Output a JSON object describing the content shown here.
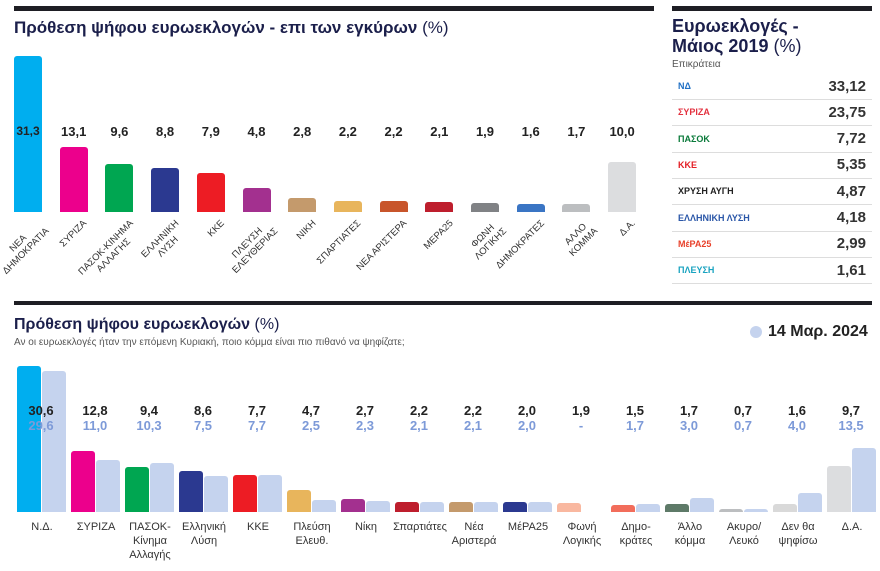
{
  "chart_data": [
    {
      "type": "bar",
      "title": "Πρόθεση ψήφου ευρωεκλογών - επι των εγκύρων",
      "title_unit": "(%)",
      "categories": [
        "ΝΕΑ\nΔΗΜΟΚΡΑΤΙΑ",
        "ΣΥΡΙΖΑ",
        "ΠΑΣΟΚ-ΚΙΝΗΜΑ\nΑΛΛΑΓΗΣ",
        "ΕΛΛΗΝΙΚΗ\nΛΥΣΗ",
        "ΚΚΕ",
        "ΠΛΕΥΣΗ\nΕΛΕΥΘΕΡΙΑΣ",
        "ΝΙΚΗ",
        "ΣΠΑΡΤΙΑΤΕΣ",
        "ΝΕΑ ΑΡΙΣΤΕΡΑ",
        "ΜΕΡΑ25",
        "ΦΩΝΗ\nΛΟΓΙΚΗΣ",
        "ΔΗΜΟΚΡΑΤΕΣ",
        "ΑΛΛΟ\nΚΟΜΜΑ",
        "Δ.Α."
      ],
      "values": [
        31.3,
        13.1,
        9.6,
        8.8,
        7.9,
        4.8,
        2.8,
        2.2,
        2.2,
        2.1,
        1.9,
        1.6,
        1.7,
        10.0
      ],
      "labels": [
        "31,3",
        "13,1",
        "9,6",
        "8,8",
        "7,9",
        "4,8",
        "2,8",
        "2,2",
        "2,2",
        "2,1",
        "1,9",
        "1,6",
        "1,7",
        "10,0"
      ],
      "colors": [
        "#00aeef",
        "#ec008c",
        "#00a651",
        "#2b3990",
        "#ed1c24",
        "#a3308f",
        "#c49a6c",
        "#e8b55c",
        "#c8552b",
        "#be1e2d",
        "#808285",
        "#3a75c4",
        "#bcbec0",
        "#dcdddf"
      ]
    },
    {
      "type": "bar",
      "title": "Πρόθεση ψήφου ευρωεκλογών",
      "title_unit": "(%)",
      "subtitle": "Αν οι ευρωεκλογές ήταν την επόμενη Κυριακή, ποιο κόμμα είναι πιο πιθανό να ψηφίζατε;",
      "legend": "top-right",
      "categories": [
        "Ν.Δ.",
        "ΣΥΡΙΖΑ",
        "ΠΑΣΟΚ-\nΚίνημα\nΑλλαγής",
        "Ελληνική\nΛύση",
        "ΚΚΕ",
        "Πλεύση\nΕλευθ.",
        "Νίκη",
        "Σπαρτιάτες",
        "Νέα\nΑριστερά",
        "ΜέΡΑ25",
        "Φωνή\nΛογικής",
        "Δημο-\nκράτες",
        "Άλλο\nκόμμα",
        "Ακυρο/\nΛευκό",
        "Δεν θα\nψηφίσω",
        "Δ.Α."
      ],
      "series": [
        {
          "values": [
            30.6,
            12.8,
            9.4,
            8.6,
            7.7,
            4.7,
            2.7,
            2.2,
            2.2,
            2.0,
            1.9,
            1.5,
            1.7,
            0.7,
            1.6,
            9.7
          ],
          "labels": [
            "30,6",
            "12,8",
            "9,4",
            "8,6",
            "7,7",
            "4,7",
            "2,7",
            "2,2",
            "2,2",
            "2,0",
            "1,9",
            "1,5",
            "1,7",
            "0,7",
            "1,6",
            "9,7"
          ],
          "colors": [
            "#00aeef",
            "#ec008c",
            "#00a651",
            "#2b3990",
            "#ed1c24",
            "#e8b55c",
            "#a3308f",
            "#be1e2d",
            "#c49a6c",
            "#2b3990",
            "#f9b8a0",
            "#f26d5b",
            "#5e7a68",
            "#bcbec0",
            "#d9d9d9",
            "#dcdddf"
          ]
        },
        {
          "name": "14 Μαρ. 2024",
          "color": "#c5d3ee",
          "values": [
            29.6,
            11.0,
            10.3,
            7.5,
            7.7,
            2.5,
            2.3,
            2.1,
            2.1,
            2.0,
            null,
            1.7,
            3.0,
            0.7,
            4.0,
            13.5
          ],
          "labels": [
            "29,6",
            "11,0",
            "10,3",
            "7,5",
            "7,7",
            "2,5",
            "2,3",
            "2,1",
            "2,1",
            "2,0",
            "-",
            "1,7",
            "3,0",
            "0,7",
            "4,0",
            "13,5"
          ]
        }
      ]
    },
    {
      "type": "table",
      "title": "Ευρωεκλογές -\nΜάιος 2019",
      "title_unit": "(%)",
      "subtitle": "Επικράτεια",
      "rows": [
        {
          "logo": "ΝΔ",
          "color": "#1f6fc4",
          "value": "33,12"
        },
        {
          "logo": "ΣΥΡΙΖΑ",
          "color": "#e3313f",
          "value": "23,75"
        },
        {
          "logo": "ΠΑΣΟΚ",
          "color": "#0a7a3a",
          "value": "7,72"
        },
        {
          "logo": "ΚΚΕ",
          "color": "#e31e24",
          "value": "5,35"
        },
        {
          "logo": "ΧΡΥΣΗ ΑΥΓΗ",
          "color": "#222",
          "value": "4,87"
        },
        {
          "logo": "ΕΛΛΗΝΙΚΗ ΛΥΣΗ",
          "color": "#2b57a8",
          "value": "4,18"
        },
        {
          "logo": "ΜέΡΑ25",
          "color": "#e8412b",
          "value": "2,99"
        },
        {
          "logo": "ΠΛΕΥΣΗ",
          "color": "#1aa3c0",
          "value": "1,61"
        }
      ]
    }
  ]
}
